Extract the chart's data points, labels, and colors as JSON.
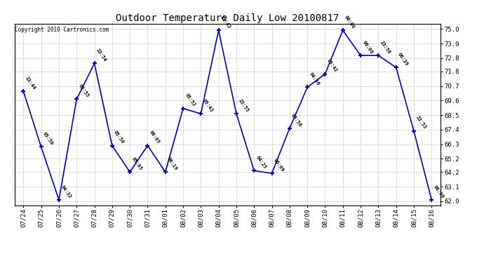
{
  "title": "Outdoor Temperature Daily Low 20100817",
  "copyright": "Copyright 2010 Cartronics.com",
  "line_color": "#0000CC",
  "bg_color": "#ffffff",
  "grid_color": "#c0c0c0",
  "points": [
    {
      "date": "07/24",
      "time": "23:44",
      "temp": 70.3
    },
    {
      "date": "07/25",
      "time": "05:50",
      "temp": 66.1
    },
    {
      "date": "07/26",
      "time": "04:32",
      "temp": 62.1
    },
    {
      "date": "07/27",
      "time": "05:55",
      "temp": 69.7
    },
    {
      "date": "07/28",
      "time": "23:54",
      "temp": 72.4
    },
    {
      "date": "07/29",
      "time": "05:56",
      "temp": 66.2
    },
    {
      "date": "07/30",
      "time": "05:05",
      "temp": 64.2
    },
    {
      "date": "07/31",
      "time": "06:05",
      "temp": 66.2
    },
    {
      "date": "08/01",
      "time": "06:19",
      "temp": 64.2
    },
    {
      "date": "08/02",
      "time": "05:52",
      "temp": 69.0
    },
    {
      "date": "08/03",
      "time": "05:43",
      "temp": 68.6
    },
    {
      "date": "08/04",
      "time": "23:43",
      "temp": 74.9
    },
    {
      "date": "08/05",
      "time": "23:55",
      "temp": 68.6
    },
    {
      "date": "08/06",
      "time": "04:25",
      "temp": 64.3
    },
    {
      "date": "08/07",
      "time": "06:09",
      "temp": 64.1
    },
    {
      "date": "08/08",
      "time": "09:56",
      "temp": 67.5
    },
    {
      "date": "08/09",
      "time": "04:56",
      "temp": 70.6
    },
    {
      "date": "08/10",
      "time": "05:42",
      "temp": 71.6
    },
    {
      "date": "08/11",
      "time": "00:00",
      "temp": 74.9
    },
    {
      "date": "08/12",
      "time": "06:08",
      "temp": 73.0
    },
    {
      "date": "08/13",
      "time": "23:56",
      "temp": 73.0
    },
    {
      "date": "08/14",
      "time": "06:39",
      "temp": 72.1
    },
    {
      "date": "08/15",
      "time": "23:53",
      "temp": 67.3
    },
    {
      "date": "08/16",
      "time": "06:09",
      "temp": 62.1
    }
  ],
  "yticks": [
    62.0,
    63.1,
    64.2,
    65.2,
    66.3,
    67.4,
    68.5,
    69.6,
    70.7,
    71.8,
    72.8,
    73.9,
    75.0
  ],
  "ylim": [
    61.7,
    75.4
  ],
  "figsize": [
    6.9,
    3.75
  ],
  "dpi": 100
}
